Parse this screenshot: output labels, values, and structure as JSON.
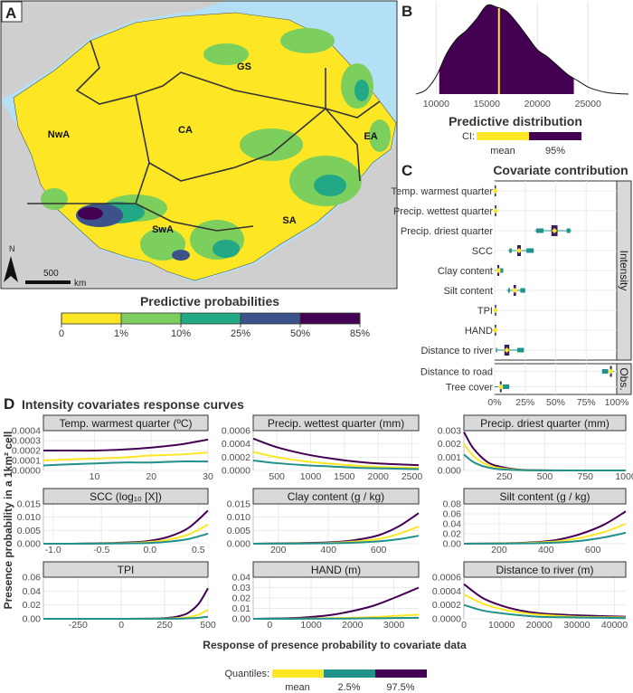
{
  "panels": {
    "a": "A",
    "b": "B",
    "c": "C",
    "d": "D"
  },
  "map": {
    "region_labels": [
      "NwA",
      "GS",
      "CA",
      "EA",
      "SA",
      "SwA"
    ],
    "north_label": "N",
    "scale_label": "500",
    "scale_unit": "km",
    "legend_title": "Predictive probabilities",
    "legend_breaks": [
      "0",
      "1%",
      "10%",
      "25%",
      "50%",
      "85%"
    ],
    "legend_colors": [
      "#fde725",
      "#7ccf5d",
      "#22a884",
      "#3b528b",
      "#440154"
    ],
    "ocean_color": "#b3e0f5",
    "land_color": "#cfcfcf"
  },
  "chart_data": [
    {
      "id": "B",
      "type": "area",
      "title": "Predictive distribution",
      "x": [
        8000,
        9000,
        10000,
        11000,
        12000,
        13000,
        14000,
        15000,
        16000,
        17000,
        18000,
        19000,
        20000,
        21000,
        22000,
        23000,
        24000,
        25000,
        26000,
        27000,
        28000,
        29000
      ],
      "density": [
        0,
        0.05,
        0.2,
        0.45,
        0.62,
        0.72,
        0.85,
        1.0,
        0.98,
        0.93,
        0.8,
        0.65,
        0.5,
        0.42,
        0.32,
        0.22,
        0.15,
        0.08,
        0.04,
        0.015,
        0.005,
        0
      ],
      "xlim": [
        8000,
        29000
      ],
      "xticks": [
        "10000",
        "15000",
        "20000",
        "25000"
      ],
      "ci_95": [
        10300,
        23600
      ],
      "mean": 16200,
      "legend": {
        "label": "CI:",
        "entries": [
          "mean",
          "95%"
        ],
        "colors": [
          "#fde725",
          "#440154"
        ]
      }
    },
    {
      "id": "C",
      "type": "boxplot",
      "title": "Covariate contribution",
      "xlim": [
        0,
        100
      ],
      "xticks": [
        "0%",
        "25%",
        "50%",
        "75%",
        "100%"
      ],
      "groups": [
        {
          "strip": "Intensity",
          "rows": [
            {
              "label": "Temp. warmest quarter",
              "mean": 0.5,
              "box": [
                0,
                1
              ],
              "whisker": [
                0,
                1.5
              ]
            },
            {
              "label": "Precip. wettest quarter",
              "mean": 0.8,
              "box": [
                0.2,
                1.4
              ],
              "whisker": [
                0,
                2
              ]
            },
            {
              "label": "Precip. driest quarter",
              "mean": 49,
              "box": [
                46.5,
                51.5
              ],
              "whisker": [
                33,
                63
              ],
              "outer": [
                [
                  34,
                  40
                ],
                [
                  59,
                  62
                ]
              ]
            },
            {
              "label": "SCC",
              "mean": 20,
              "box": [
                18.5,
                21.5
              ],
              "whisker": [
                11,
                32
              ],
              "outer": [
                [
                  12,
                  14
                ],
                [
                  26,
                  32
                ]
              ]
            },
            {
              "label": "Clay content",
              "mean": 3,
              "box": [
                2.2,
                3.8
              ],
              "whisker": [
                0,
                7
              ],
              "outer": [
                [
                  4.5,
                  7
                ]
              ]
            },
            {
              "label": "Silt content",
              "mean": 16.5,
              "box": [
                15.5,
                17.5
              ],
              "whisker": [
                10,
                25
              ],
              "outer": [
                [
                  11,
                  12.5
                ],
                [
                  21,
                  25
                ]
              ]
            },
            {
              "label": "TPI",
              "mean": 0.6,
              "box": [
                0.2,
                1
              ],
              "whisker": [
                0,
                1.5
              ]
            },
            {
              "label": "HAND",
              "mean": 0.5,
              "box": [
                0.1,
                0.9
              ],
              "whisker": [
                0,
                1.2
              ]
            },
            {
              "label": "Distance to river",
              "mean": 10,
              "box": [
                8,
                12
              ],
              "whisker": [
                1,
                24
              ],
              "outer": [
                [
                  1,
                  2
                ],
                [
                  18.5,
                  24
                ]
              ]
            }
          ]
        },
        {
          "strip": "Obs.",
          "rows": [
            {
              "label": "Distance to road",
              "mean": 95,
              "box": [
                94.5,
                96
              ],
              "whisker": [
                88,
                98
              ],
              "outer": [
                [
                  88,
                  93
                ]
              ]
            },
            {
              "label": "Tree cover",
              "mean": 5,
              "box": [
                4.3,
                5.7
              ],
              "whisker": [
                0,
                12
              ],
              "outer": [
                [
                  6.5,
                  12
                ]
              ]
            }
          ]
        }
      ],
      "colors": {
        "box": "#3b1f63",
        "interval": "#21918c",
        "mean": "#fde725"
      }
    },
    {
      "id": "D",
      "type": "line",
      "title": "Intensity covariates response curves",
      "ylabel": "Presence probability in a 1km² cell",
      "xlabel": "Response of presence probability to covariate data",
      "legend": {
        "label": "Quantiles:",
        "entries": [
          "mean",
          "2.5%",
          "97.5%"
        ],
        "colors": [
          "#fde725",
          "#21918c",
          "#440154"
        ]
      },
      "facets": [
        {
          "title": "Temp. warmest quarter (ºC)",
          "xlim": [
            1,
            30
          ],
          "ylim": [
            0,
            0.0004
          ],
          "xticks": [
            10,
            20,
            30
          ],
          "xtick_labels": [
            "10",
            "20",
            "30"
          ],
          "yticks": [
            0,
            0.0001,
            0.0002,
            0.0003,
            0.0004
          ],
          "ytick_labels": [
            "0.0000",
            "0.0001",
            "0.0002",
            "0.0003",
            "0.0004"
          ],
          "x": [
            1,
            5,
            10,
            15,
            20,
            25,
            30
          ],
          "mean": [
            0.0001,
            0.00011,
            0.00012,
            0.00013,
            0.00015,
            0.00016,
            0.00018
          ],
          "q2_5": [
            5e-05,
            6e-05,
            7e-05,
            8e-05,
            8e-05,
            9e-05,
            9e-05
          ],
          "q97_5": [
            0.0002,
            0.0002,
            0.0002,
            0.00021,
            0.00023,
            0.00026,
            0.00031
          ]
        },
        {
          "title": "Precip. wettest quarter (mm)",
          "xlim": [
            150,
            2600
          ],
          "ylim": [
            0,
            0.0006
          ],
          "xticks": [
            500,
            1000,
            1500,
            2000,
            2500
          ],
          "xtick_labels": [
            "500",
            "1000",
            "1500",
            "2000",
            "2500"
          ],
          "yticks": [
            0,
            0.0002,
            0.0004,
            0.0006
          ],
          "ytick_labels": [
            "0.0000",
            "0.0002",
            "0.0004",
            "0.0006"
          ],
          "x": [
            150,
            500,
            900,
            1300,
            1700,
            2100,
            2600
          ],
          "mean": [
            0.00028,
            0.0002,
            0.00014,
            0.0001,
            7e-05,
            5e-05,
            4e-05
          ],
          "q2_5": [
            0.00015,
            0.00011,
            8e-05,
            6e-05,
            4e-05,
            3e-05,
            2e-05
          ],
          "q97_5": [
            0.00048,
            0.00035,
            0.00025,
            0.00018,
            0.00013,
            0.0001,
            8e-05
          ]
        },
        {
          "title": "Precip. driest quarter (mm)",
          "xlim": [
            0,
            1000
          ],
          "ylim": [
            0,
            0.003
          ],
          "xticks": [
            250,
            500,
            750,
            1000
          ],
          "xtick_labels": [
            "250",
            "500",
            "750",
            "1000"
          ],
          "yticks": [
            0,
            0.001,
            0.002,
            0.003
          ],
          "ytick_labels": [
            "0.000",
            "0.001",
            "0.002",
            "0.003"
          ],
          "x": [
            0,
            50,
            100,
            150,
            200,
            300,
            400,
            600,
            1000
          ],
          "mean": [
            0.002,
            0.0012,
            0.0007,
            0.0004,
            0.00022,
            7e-05,
            2e-05,
            0,
            0
          ],
          "q2_5": [
            0.0012,
            0.0007,
            0.0004,
            0.00022,
            0.00012,
            4e-05,
            1e-05,
            0,
            0
          ],
          "q97_5": [
            0.0029,
            0.0018,
            0.0011,
            0.0006,
            0.00035,
            0.00011,
            3e-05,
            0,
            0
          ]
        },
        {
          "title": "SCC (log₁₀ [X])",
          "xlim": [
            -1.1,
            0.6
          ],
          "ylim": [
            0,
            0.015
          ],
          "xticks": [
            -1,
            -0.5,
            0,
            0.5
          ],
          "xtick_labels": [
            "-1.0",
            "-0.5",
            "0.0",
            "0.5"
          ],
          "yticks": [
            0,
            0.005,
            0.01,
            0.015
          ],
          "ytick_labels": [
            "0.000",
            "0.005",
            "0.010",
            "0.015"
          ],
          "x": [
            -1.1,
            -0.8,
            -0.5,
            -0.2,
            0,
            0.2,
            0.4,
            0.6
          ],
          "mean": [
            0,
            0,
            0.0001,
            0.0003,
            0.0007,
            0.0016,
            0.0035,
            0.0072
          ],
          "q2_5": [
            0,
            0,
            5e-05,
            0.00015,
            0.0003,
            0.0008,
            0.0018,
            0.0038
          ],
          "q97_5": [
            0,
            0,
            0.0002,
            0.0005,
            0.0011,
            0.0027,
            0.006,
            0.0125
          ]
        },
        {
          "title": "Clay content (g / kg)",
          "xlim": [
            100,
            760
          ],
          "ylim": [
            0,
            0.015
          ],
          "xticks": [
            200,
            400,
            600
          ],
          "xtick_labels": [
            "200",
            "400",
            "600"
          ],
          "yticks": [
            0,
            0.005,
            0.01,
            0.015
          ],
          "ytick_labels": [
            "0.000",
            "0.005",
            "0.010",
            "0.015"
          ],
          "x": [
            100,
            250,
            400,
            500,
            600,
            680,
            760
          ],
          "mean": [
            0,
            0.0001,
            0.0003,
            0.0008,
            0.0018,
            0.0037,
            0.0065
          ],
          "q2_5": [
            0,
            5e-05,
            0.00015,
            0.0004,
            0.0009,
            0.0017,
            0.003
          ],
          "q97_5": [
            0,
            0.0002,
            0.0005,
            0.0013,
            0.0032,
            0.0065,
            0.0115
          ]
        },
        {
          "title": "Silt content (g / kg)",
          "xlim": [
            50,
            740
          ],
          "ylim": [
            0,
            0.08
          ],
          "xticks": [
            200,
            400,
            600
          ],
          "xtick_labels": [
            "200",
            "400",
            "600"
          ],
          "yticks": [
            0,
            0.02,
            0.04,
            0.06,
            0.08
          ],
          "ytick_labels": [
            "0.00",
            "0.02",
            "0.04",
            "0.06",
            "0.08"
          ],
          "x": [
            50,
            200,
            350,
            450,
            550,
            650,
            740
          ],
          "mean": [
            0,
            0.0005,
            0.002,
            0.005,
            0.012,
            0.024,
            0.04
          ],
          "q2_5": [
            0,
            0.0003,
            0.001,
            0.0025,
            0.006,
            0.013,
            0.022
          ],
          "q97_5": [
            0,
            0.0008,
            0.003,
            0.008,
            0.02,
            0.039,
            0.065
          ]
        },
        {
          "title": "TPI",
          "xlim": [
            -450,
            500
          ],
          "ylim": [
            0,
            0.06
          ],
          "xticks": [
            -250,
            0,
            250,
            500
          ],
          "xtick_labels": [
            "-250",
            "0",
            "250",
            "500"
          ],
          "yticks": [
            0,
            0.02,
            0.04,
            0.06
          ],
          "ytick_labels": [
            "0.00",
            "0.02",
            "0.04",
            "0.06"
          ],
          "x": [
            -450,
            0,
            250,
            350,
            400,
            450,
            500
          ],
          "mean": [
            0,
            0,
            0.0003,
            0.0015,
            0.003,
            0.0065,
            0.013
          ],
          "q2_5": [
            0,
            0,
            0.0001,
            0.0004,
            0.0008,
            0.0016,
            0.003
          ],
          "q97_5": [
            0,
            0,
            0.001,
            0.005,
            0.011,
            0.023,
            0.044
          ]
        },
        {
          "title": "HAND (m)",
          "xlim": [
            -400,
            3600
          ],
          "ylim": [
            0,
            0.04
          ],
          "xticks": [
            0,
            1000,
            2000,
            3000
          ],
          "xtick_labels": [
            "0",
            "1000",
            "2000",
            "3000"
          ],
          "yticks": [
            0,
            0.01,
            0.02,
            0.03,
            0.04
          ],
          "ytick_labels": [
            "0.00",
            "0.01",
            "0.02",
            "0.03",
            "0.04"
          ],
          "x": [
            -400,
            500,
            1000,
            1500,
            2000,
            2500,
            3000,
            3600
          ],
          "mean": [
            0,
            0.0001,
            0.0003,
            0.0006,
            0.001,
            0.0017,
            0.0027,
            0.004
          ],
          "q2_5": [
            0,
            0,
            0.0001,
            0.0002,
            0.0003,
            0.0005,
            0.0008,
            0.001
          ],
          "q97_5": [
            0,
            0.0006,
            0.0018,
            0.0038,
            0.0075,
            0.0125,
            0.02,
            0.03
          ]
        },
        {
          "title": "Distance to river (m)",
          "xlim": [
            0,
            43000
          ],
          "ylim": [
            0,
            0.0006
          ],
          "xticks": [
            0,
            10000,
            20000,
            30000,
            40000
          ],
          "xtick_labels": [
            "0",
            "10000",
            "20000",
            "30000",
            "40000"
          ],
          "yticks": [
            0,
            0.0002,
            0.0004,
            0.0006
          ],
          "ytick_labels": [
            "0.0000",
            "0.0002",
            "0.0004",
            "0.0006"
          ],
          "x": [
            0,
            5000,
            10000,
            15000,
            20000,
            30000,
            43000
          ],
          "mean": [
            0.00035,
            0.00022,
            0.00014,
            9e-05,
            6e-05,
            3e-05,
            2e-05
          ],
          "q2_5": [
            0.0002,
            0.00012,
            8e-05,
            5e-05,
            3e-05,
            2e-05,
            1e-05
          ],
          "q97_5": [
            0.0005,
            0.0003,
            0.00019,
            0.00012,
            8e-05,
            5e-05,
            3e-05
          ]
        }
      ]
    }
  ]
}
